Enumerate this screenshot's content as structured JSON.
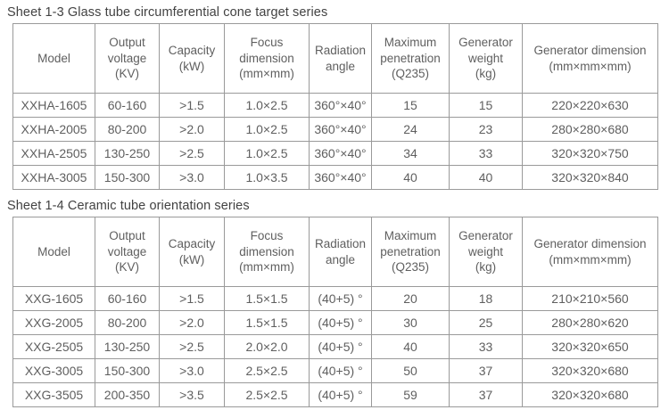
{
  "colors": {
    "bg": "#ffffff",
    "border": "#9a9a9a",
    "text": "#5f5f5f",
    "title-text": "#424242"
  },
  "tables": [
    {
      "title": "Sheet 1-3 Glass tube circumferential cone target series",
      "columns": [
        {
          "id": "model",
          "lines": [
            "Model"
          ]
        },
        {
          "id": "output-voltage",
          "lines": [
            "Output",
            "voltage",
            "(KV)"
          ]
        },
        {
          "id": "capacity",
          "lines": [
            "Capacity",
            "(kW)"
          ]
        },
        {
          "id": "focus-dimension",
          "lines": [
            "Focus",
            "dimension",
            "(mm×mm)"
          ]
        },
        {
          "id": "radiation-angle",
          "lines": [
            "Radiation",
            "angle"
          ]
        },
        {
          "id": "maximum-penetration",
          "lines": [
            "Maximum",
            "penetration",
            "(Q235)"
          ]
        },
        {
          "id": "generator-weight",
          "lines": [
            "Generator",
            "weight",
            "(kg)"
          ]
        },
        {
          "id": "generator-dimension",
          "lines": [
            "Generator dimension",
            "(mm×mm×mm)"
          ]
        }
      ],
      "rows": [
        [
          "XXHA-1605",
          "60-160",
          ">1.5",
          "1.0×2.5",
          "360°×40°",
          "15",
          "15",
          "220×220×630"
        ],
        [
          "XXHA-2005",
          "80-200",
          ">2.0",
          "1.0×2.5",
          "360°×40°",
          "24",
          "23",
          "280×280×680"
        ],
        [
          "XXHA-2505",
          "130-250",
          ">2.5",
          "1.0×2.5",
          "360°×40°",
          "34",
          "33",
          "320×320×750"
        ],
        [
          "XXHA-3005",
          "150-300",
          ">3.0",
          "1.0×3.5",
          "360°×40°",
          "40",
          "40",
          "320×320×840"
        ]
      ]
    },
    {
      "title": "Sheet 1-4 Ceramic tube orientation series",
      "columns": [
        {
          "id": "model",
          "lines": [
            "Model"
          ]
        },
        {
          "id": "output-voltage",
          "lines": [
            "Output",
            "voltage",
            "(KV)"
          ]
        },
        {
          "id": "capacity",
          "lines": [
            "Capacity",
            "(kW)"
          ]
        },
        {
          "id": "focus-dimension",
          "lines": [
            "Focus",
            "dimension",
            "(mm×mm)"
          ]
        },
        {
          "id": "radiation-angle",
          "lines": [
            "Radiation",
            "angle"
          ]
        },
        {
          "id": "maximum-penetration",
          "lines": [
            "Maximum",
            "penetration",
            "(Q235)"
          ]
        },
        {
          "id": "generator-weight",
          "lines": [
            "Generator",
            "weight",
            "(kg)"
          ]
        },
        {
          "id": "generator-dimension",
          "lines": [
            "Generator dimension",
            "(mm×mm×mm)"
          ]
        }
      ],
      "rows": [
        [
          "XXG-1605",
          "60-160",
          ">1.5",
          "1.5×1.5",
          "(40+5) °",
          "20",
          "18",
          "210×210×560"
        ],
        [
          "XXG-2005",
          "80-200",
          ">2.0",
          "1.5×1.5",
          "(40+5) °",
          "30",
          "25",
          "280×280×620"
        ],
        [
          "XXG-2505",
          "130-250",
          ">2.5",
          "2.0×2.0",
          "(40+5) °",
          "40",
          "33",
          "320×320×650"
        ],
        [
          "XXG-3005",
          "150-300",
          ">3.0",
          "2.5×2.5",
          "(40+5) °",
          "50",
          "37",
          "320×320×680"
        ],
        [
          "XXG-3505",
          "200-350",
          ">3.5",
          "2.5×2.5",
          "(40+5) °",
          "59",
          "37",
          "320×320×680"
        ]
      ]
    }
  ]
}
